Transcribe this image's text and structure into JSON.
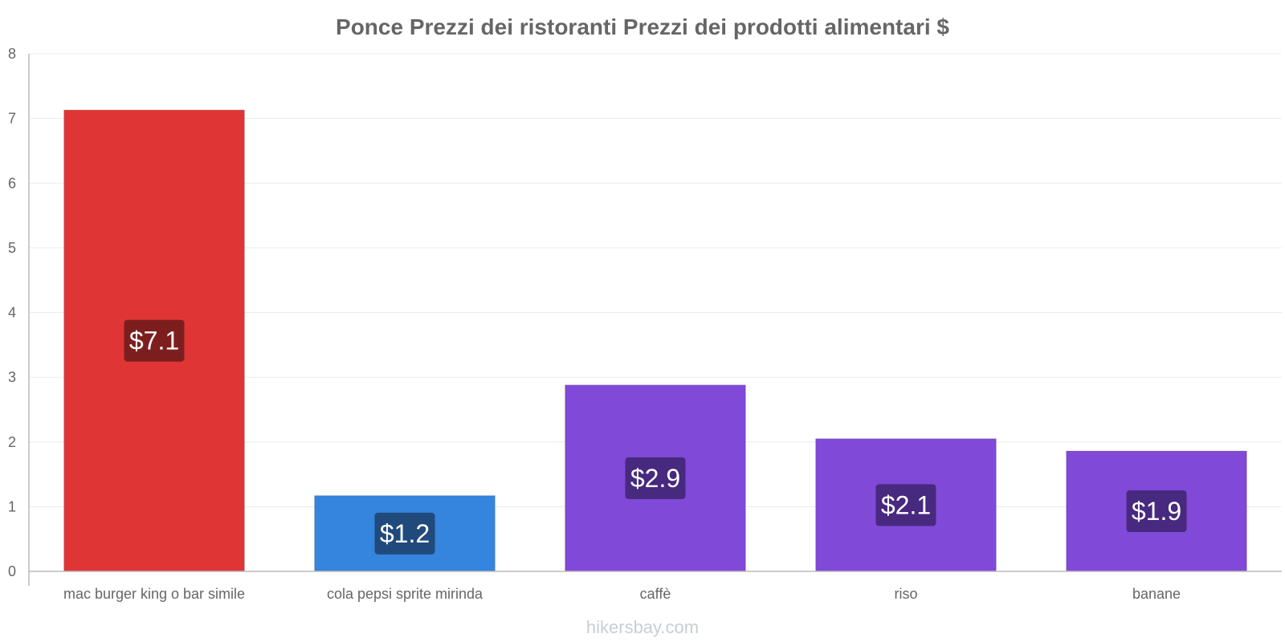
{
  "chart_data": {
    "type": "bar",
    "title": "Ponce Prezzi dei ristoranti Prezzi dei prodotti alimentari $",
    "categories": [
      "mac burger king o bar simile",
      "cola pepsi sprite mirinda",
      "caffè",
      "riso",
      "banane"
    ],
    "values": [
      7.13,
      1.17,
      2.88,
      2.05,
      1.86
    ],
    "data_labels": [
      "$7.1",
      "$1.2",
      "$2.9",
      "$2.1",
      "$1.9"
    ],
    "bar_colors": [
      "#e03535",
      "#3584de",
      "#8049d8",
      "#8049d8",
      "#8049d8"
    ],
    "label_bg_colors": [
      "#6b1a1a",
      "#1d3f6b",
      "#3d2370",
      "#3d2370",
      "#3d2370"
    ],
    "ylim": [
      0,
      8
    ],
    "yticks": [
      0,
      1,
      2,
      3,
      4,
      5,
      6,
      7,
      8
    ],
    "grid": true
  },
  "footer": {
    "text": "hikersbay.com"
  }
}
